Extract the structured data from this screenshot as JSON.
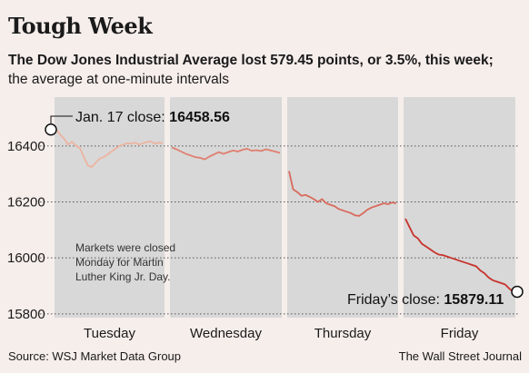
{
  "title": "Tough Week",
  "subtitle_bold": "The Dow Jones Industrial Average lost 579.45 points, or 3.5%, this week;",
  "subtitle_regular": "the average at one-minute intervals",
  "source": "Source: WSJ Market Data Group",
  "credit": "The Wall Street Journal",
  "chart_data": {
    "type": "line",
    "title": "Tough Week",
    "xlabel": "",
    "ylabel": "",
    "ylim": [
      15780,
      16500
    ],
    "yticks": [
      15800,
      16000,
      16200,
      16400
    ],
    "ytick_labels": [
      "15800",
      "16000",
      "16200",
      "16400"
    ],
    "grid": true,
    "days": [
      "Tuesday",
      "Wednesday",
      "Thursday",
      "Friday"
    ],
    "series": [
      {
        "day": "Tuesday",
        "color": "#edb3a0",
        "values": [
          16458.56,
          16440,
          16425,
          16405,
          16415,
          16400,
          16392,
          16360,
          16330,
          16325,
          16340,
          16355,
          16360,
          16370,
          16380,
          16390,
          16400,
          16405,
          16410,
          16408,
          16412,
          16405,
          16410,
          16414,
          16416,
          16408,
          16412,
          16410
        ]
      },
      {
        "day": "Wednesday",
        "color": "#e07e70",
        "values": [
          16395,
          16388,
          16380,
          16372,
          16366,
          16360,
          16358,
          16352,
          16362,
          16370,
          16378,
          16372,
          16378,
          16384,
          16380,
          16386,
          16390,
          16383,
          16385,
          16382,
          16388,
          16384,
          16380,
          16375
        ]
      },
      {
        "day": "Thursday",
        "color": "#d86a5c",
        "values": [
          16310,
          16245,
          16235,
          16222,
          16225,
          16218,
          16210,
          16200,
          16210,
          16195,
          16190,
          16185,
          16175,
          16170,
          16165,
          16160,
          16152,
          16150,
          16160,
          16172,
          16180,
          16185,
          16190,
          16195,
          16192,
          16198,
          16195
        ]
      },
      {
        "day": "Friday",
        "color": "#c8322c",
        "values": [
          16140,
          16110,
          16080,
          16070,
          16050,
          16040,
          16030,
          16020,
          16012,
          16010,
          16005,
          16000,
          15995,
          15990,
          15985,
          15980,
          15975,
          15970,
          15955,
          15945,
          15930,
          15920,
          15915,
          15910,
          15905,
          15890,
          15879.11
        ]
      }
    ],
    "annotations": {
      "open_label": "Jan. 17 close:",
      "open_value": "16458.56",
      "close_label": "Friday’s close:",
      "close_value": "15879.11",
      "closed_note": [
        "Markets were closed",
        "Monday for Martin",
        "Luther King Jr. Day."
      ]
    }
  }
}
